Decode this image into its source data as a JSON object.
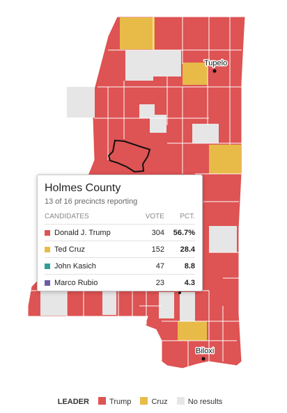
{
  "colors": {
    "trump": "#de5353",
    "cruz": "#e8bb49",
    "kasich": "#2f9e99",
    "rubio": "#6e5ba8",
    "no_results": "#e6e6e6",
    "county_border": "#ffffff",
    "highlight": "#111111"
  },
  "cities": [
    {
      "name": "Tupelo"
    },
    {
      "name": "Biloxi"
    }
  ],
  "tooltip": {
    "county": "Holmes County",
    "reporting": "13 of 16 precincts reporting",
    "headers": {
      "candidates": "CANDIDATES",
      "vote": "VOTE",
      "pct": "PCT."
    },
    "rows": [
      {
        "name": "Donald J. Trump",
        "vote": "304",
        "pct": "56.7%",
        "color_key": "trump"
      },
      {
        "name": "Ted Cruz",
        "vote": "152",
        "pct": "28.4",
        "color_key": "cruz"
      },
      {
        "name": "John Kasich",
        "vote": "47",
        "pct": "8.8",
        "color_key": "kasich"
      },
      {
        "name": "Marco Rubio",
        "vote": "23",
        "pct": "4.3",
        "color_key": "rubio"
      }
    ]
  },
  "legend": {
    "title": "LEADER",
    "items": [
      {
        "label": "Trump",
        "color_key": "trump"
      },
      {
        "label": "Cruz",
        "color_key": "cruz"
      },
      {
        "label": "No results",
        "color_key": "no_results"
      }
    ]
  }
}
